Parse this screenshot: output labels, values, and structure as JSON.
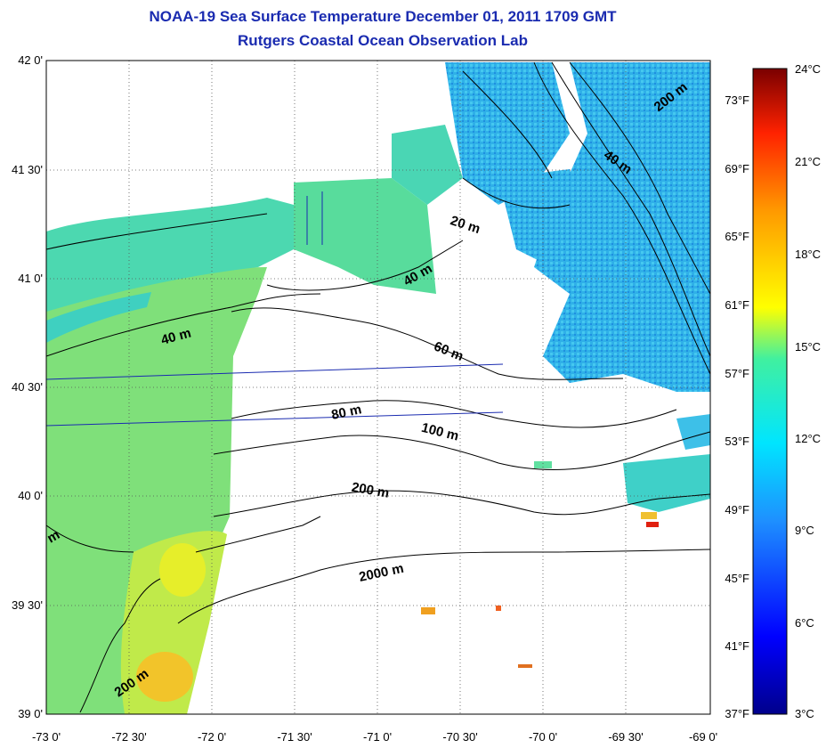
{
  "title": "NOAA-19 Sea Surface Temperature December 01, 2011 1709 GMT",
  "subtitle": "Rutgers Coastal Ocean Observation Lab",
  "lat_ticks": [
    "42 0'",
    "41 30'",
    "41 0'",
    "40 30'",
    "40 0'",
    "39 30'",
    "39 0'"
  ],
  "lon_ticks": [
    "-73 0'",
    "-72 30'",
    "-72 0'",
    "-71 30'",
    "-71 0'",
    "-70 30'",
    "-70 0'",
    "-69 30'",
    "-69 0'"
  ],
  "colorbar": {
    "celsius": [
      "24°C",
      "21°C",
      "18°C",
      "15°C",
      "12°C",
      "9°C",
      "6°C",
      "3°C"
    ],
    "fahrenheit": [
      "73°F",
      "69°F",
      "65°F",
      "61°F",
      "57°F",
      "53°F",
      "49°F",
      "45°F",
      "41°F",
      "37°F"
    ]
  },
  "contours": [
    "200 m",
    "40 m",
    "20 m",
    "40 m",
    "40 m",
    "60 m",
    "80 m",
    "100 m",
    "200 m",
    "2000 m",
    "200 m",
    "m"
  ],
  "colors": {
    "title": "#1a2bb0",
    "land": "#ffffff",
    "track": "#1a2bb0"
  }
}
